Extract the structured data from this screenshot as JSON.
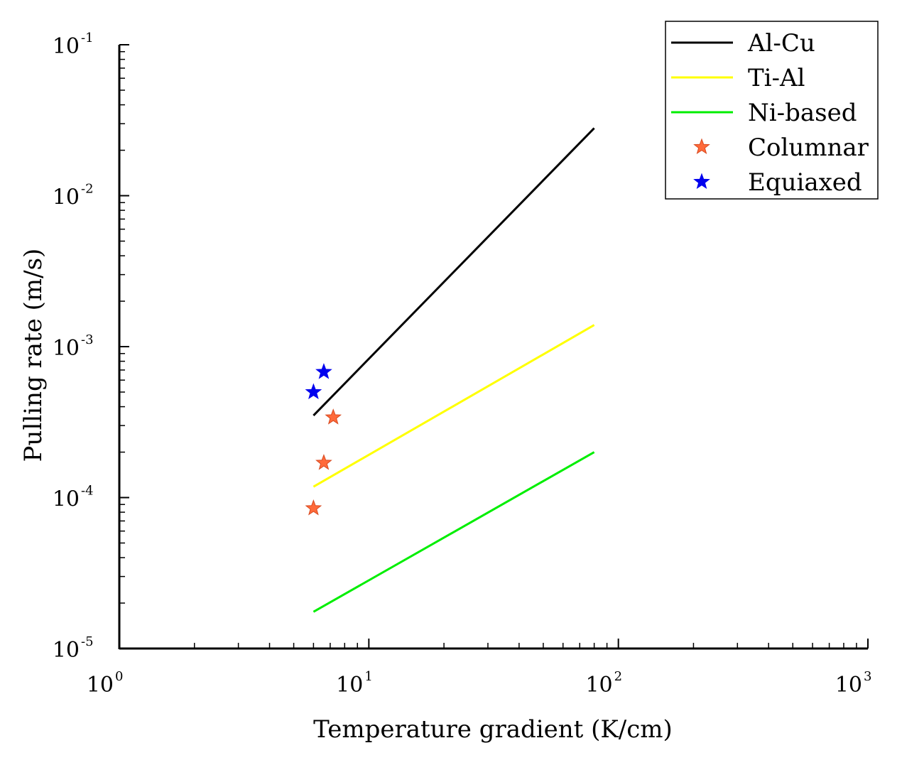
{
  "chart_data": {
    "type": "line",
    "xscale": "log",
    "yscale": "log",
    "xlabel": "Temperature gradient (K/cm)",
    "ylabel": "Pulling rate (m/s)",
    "xlim": [
      1,
      1000
    ],
    "ylim": [
      1e-05,
      0.1
    ],
    "x_ticks": [
      {
        "base": "10",
        "exp": "0"
      },
      {
        "base": "10",
        "exp": "1"
      },
      {
        "base": "10",
        "exp": "2"
      },
      {
        "base": "10",
        "exp": "3"
      }
    ],
    "y_ticks": [
      {
        "base": "10",
        "exp": "-5"
      },
      {
        "base": "10",
        "exp": "-4"
      },
      {
        "base": "10",
        "exp": "-3"
      },
      {
        "base": "10",
        "exp": "-2"
      },
      {
        "base": "10",
        "exp": "-1"
      }
    ],
    "series": [
      {
        "name": "Al-Cu",
        "kind": "line",
        "color": "#000000",
        "x": [
          6,
          80
        ],
        "y": [
          0.00035,
          0.028
        ]
      },
      {
        "name": "Ti-Al",
        "kind": "line",
        "color": "#ffff00",
        "x": [
          6,
          80
        ],
        "y": [
          0.000118,
          0.00139
        ]
      },
      {
        "name": "Ni-based",
        "kind": "line",
        "color": "#00ee00",
        "x": [
          6,
          80
        ],
        "y": [
          1.75e-05,
          0.0002
        ]
      },
      {
        "name": "Columnar",
        "kind": "scatter",
        "marker": "star",
        "color": "#ff6a3a",
        "x": [
          6.0,
          6.6,
          7.2
        ],
        "y": [
          8.5e-05,
          0.00017,
          0.00034
        ]
      },
      {
        "name": "Equiaxed",
        "kind": "scatter",
        "marker": "star",
        "color": "#0000ee",
        "x": [
          6.0,
          6.6
        ],
        "y": [
          0.0005,
          0.00068
        ]
      }
    ],
    "legend_position": "top-right"
  }
}
